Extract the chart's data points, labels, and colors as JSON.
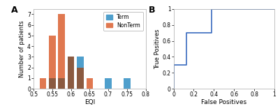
{
  "hist_bin_centers": [
    0.525,
    0.55,
    0.575,
    0.6,
    0.625,
    0.65,
    0.675,
    0.7,
    0.725,
    0.75,
    0.775
  ],
  "hist_bin_edges": [
    0.51,
    0.535,
    0.56,
    0.585,
    0.61,
    0.635,
    0.66,
    0.685,
    0.71,
    0.735,
    0.76,
    0.785
  ],
  "term_counts": [
    0,
    1,
    1,
    3,
    3,
    0,
    0,
    1,
    0,
    1,
    0
  ],
  "nonterm_counts": [
    1,
    5,
    7,
    3,
    2,
    1,
    0,
    0,
    0,
    0,
    0
  ],
  "bar_width": 0.018,
  "term_color": "#4f9fcc",
  "nonterm_color": "#e07850",
  "overlap_color": "#8b5a40",
  "xlabel_hist": "EQI",
  "ylabel_hist": "Number of patients",
  "xlim_hist": [
    0.5,
    0.8
  ],
  "ylim_hist": [
    0,
    7.5
  ],
  "yticks_hist": [
    0,
    1,
    2,
    3,
    4,
    5,
    6,
    7
  ],
  "xticks_hist": [
    0.5,
    0.55,
    0.6,
    0.65,
    0.7,
    0.75,
    0.8
  ],
  "xtick_labels": [
    "0.5",
    "0.55",
    "0.6",
    "0.65",
    "0.7",
    "0.75",
    "0.8"
  ],
  "ytick_labels": [
    "0",
    "1",
    "2",
    "3",
    "4",
    "5",
    "6",
    "7"
  ],
  "legend_labels": [
    "Term",
    "NonTerm"
  ],
  "panel_a_label": "A",
  "panel_b_label": "B",
  "roc_fp": [
    0.0,
    0.0,
    0.0,
    0.125,
    0.125,
    0.125,
    0.375,
    0.375,
    1.0
  ],
  "roc_tp": [
    0.0,
    0.0,
    0.3,
    0.3,
    0.45,
    0.7,
    0.7,
    1.0,
    1.0
  ],
  "roc_color": "#3a6bbf",
  "xlabel_roc": "False Positives",
  "ylabel_roc": "True Positives",
  "xlim_roc": [
    0.0,
    1.0
  ],
  "ylim_roc": [
    0.0,
    1.0
  ],
  "xticks_roc": [
    0.0,
    0.2,
    0.4,
    0.6,
    0.8,
    1.0
  ],
  "yticks_roc": [
    0.0,
    0.2,
    0.4,
    0.6,
    0.8,
    1.0
  ],
  "xtick_labels_roc": [
    "0",
    "0.2",
    "0.4",
    "0.6",
    "0.8",
    "1"
  ],
  "ytick_labels_roc": [
    "0",
    "0.2",
    "0.4",
    "0.6",
    "0.8",
    "1"
  ],
  "figsize": [
    4.01,
    1.59
  ],
  "dpi": 100,
  "background_color": "#ffffff",
  "spine_color": "#aaaaaa"
}
